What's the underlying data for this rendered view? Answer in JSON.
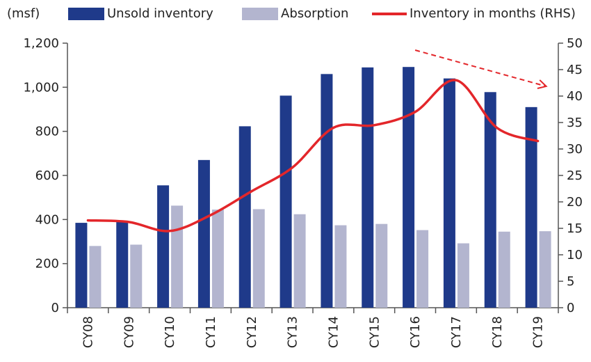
{
  "chart_data": {
    "type": "bar",
    "unit_label": "(msf)",
    "categories": [
      "CY08",
      "CY09",
      "CY10",
      "CY11",
      "CY12",
      "CY13",
      "CY14",
      "CY15",
      "CY16",
      "CY17",
      "CY18",
      "CY19"
    ],
    "series": [
      {
        "name": "Unsold inventory",
        "type": "bar",
        "axis": "left",
        "color": "#1f3a8a",
        "values": [
          385,
          395,
          555,
          670,
          823,
          962,
          1060,
          1090,
          1092,
          1040,
          978,
          910
        ]
      },
      {
        "name": "Absorption",
        "type": "bar",
        "axis": "left",
        "color": "#b3b5cf",
        "values": [
          280,
          286,
          463,
          445,
          447,
          424,
          374,
          380,
          352,
          292,
          345,
          347
        ]
      },
      {
        "name": "Inventory in months (RHS)",
        "type": "line",
        "axis": "right",
        "color": "#e3262a",
        "values": [
          16.5,
          16.2,
          14.5,
          17.5,
          22,
          26.5,
          34,
          34.5,
          37,
          43,
          34,
          31.5
        ]
      }
    ],
    "y_left": {
      "range": [
        0,
        1200
      ],
      "ticks": [
        "0",
        "200",
        "400",
        "600",
        "800",
        "1,000",
        "1,200"
      ]
    },
    "y_right": {
      "range": [
        0,
        50
      ],
      "ticks": [
        "0",
        "5",
        "10",
        "15",
        "20",
        "25",
        "30",
        "35",
        "40",
        "45",
        "50"
      ]
    },
    "grid": false,
    "legend_position": "top",
    "annotation": {
      "type": "dashed-trend-arrow",
      "color": "#e3262a",
      "from_category": "CY16",
      "to_category": "CY19",
      "direction": "down"
    }
  }
}
